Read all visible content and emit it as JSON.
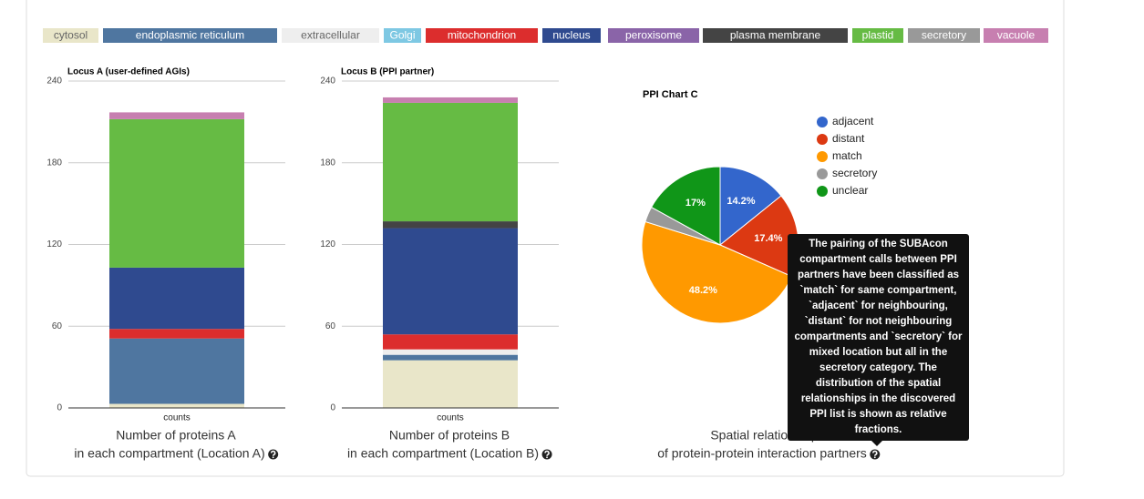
{
  "legend": [
    {
      "name": "cytosol",
      "color": "#e9e6c9",
      "text_color": "#666666"
    },
    {
      "name": "endoplasmic reticulum",
      "color": "#4f76a0",
      "text_color": "#ffffff"
    },
    {
      "name": "extracellular",
      "color": "#eeeeee",
      "text_color": "#666666"
    },
    {
      "name": "Golgi",
      "color": "#7ec8e3",
      "text_color": "#ffffff"
    },
    {
      "name": "mitochondrion",
      "color": "#dc2d2d",
      "text_color": "#ffffff"
    },
    {
      "name": "nucleus",
      "color": "#2f4a8f",
      "text_color": "#ffffff"
    },
    {
      "name": "peroxisome",
      "color": "#8a64a8",
      "text_color": "#ffffff"
    },
    {
      "name": "plasma membrane",
      "color": "#444444",
      "text_color": "#ffffff"
    },
    {
      "name": "plastid",
      "color": "#66bb44",
      "text_color": "#ffffff"
    },
    {
      "name": "secretory",
      "color": "#999999",
      "text_color": "#ffffff"
    },
    {
      "name": "vacuole",
      "color": "#c77fb0",
      "text_color": "#ffffff"
    }
  ],
  "chart_data": [
    {
      "type": "stacked-bar",
      "title": "Locus A (user-defined AGIs)",
      "categories": [
        "counts"
      ],
      "series": [
        {
          "values": [
            3
          ]
        },
        {
          "values": [
            48
          ]
        },
        {
          "values": [
            0
          ]
        },
        {
          "values": [
            0
          ]
        },
        {
          "values": [
            7
          ]
        },
        {
          "values": [
            45
          ]
        },
        {
          "values": [
            0
          ]
        },
        {
          "values": [
            0
          ]
        },
        {
          "values": [
            109
          ]
        },
        {
          "values": [
            0
          ]
        },
        {
          "values": [
            5
          ]
        }
      ],
      "ylim": [
        0,
        240
      ],
      "yticks": [
        0,
        60,
        120,
        180,
        240
      ],
      "grid": true,
      "caption": [
        "Number of proteins A",
        "in each compartment (Location A)"
      ]
    },
    {
      "type": "stacked-bar",
      "title": "Locus B (PPI partner)",
      "categories": [
        "counts"
      ],
      "series": [
        {
          "values": [
            35
          ]
        },
        {
          "values": [
            4
          ]
        },
        {
          "values": [
            4
          ]
        },
        {
          "values": [
            0
          ]
        },
        {
          "values": [
            11
          ]
        },
        {
          "values": [
            78
          ]
        },
        {
          "values": [
            0
          ]
        },
        {
          "values": [
            5
          ]
        },
        {
          "values": [
            87
          ]
        },
        {
          "values": [
            0
          ]
        },
        {
          "values": [
            4
          ]
        }
      ],
      "ylim": [
        0,
        240
      ],
      "yticks": [
        0,
        60,
        120,
        180,
        240
      ],
      "grid": true,
      "caption": [
        "Number of proteins B",
        "in each compartment (Location B)"
      ]
    },
    {
      "type": "pie",
      "title": "PPI Chart C",
      "categories": [
        "adjacent",
        "distant",
        "match",
        "secretory",
        "unclear"
      ],
      "values": [
        14.2,
        17.4,
        48.2,
        3.2,
        17
      ],
      "value_labels": [
        "14.2%",
        "17.4%",
        "48.2%",
        null,
        "17%"
      ],
      "colors": [
        "#3366cc",
        "#dc3912",
        "#ff9900",
        "#999999",
        "#109618"
      ],
      "caption": [
        "Spatial relationships",
        "of protein-protein interaction partners"
      ]
    }
  ],
  "tooltip": [
    "The pairing of the SUBAcon",
    "compartment calls between PPI",
    "partners have been classified as",
    "`match` for same compartment,",
    "`adjacent` for neighbouring,",
    "`distant` for not neighbouring",
    "compartments and `secretory` for",
    "mixed location but all in the",
    "secretory category. The",
    "distribution of the spatial",
    "relationships in the discovered",
    "PPI list is shown as relative",
    "fractions."
  ]
}
